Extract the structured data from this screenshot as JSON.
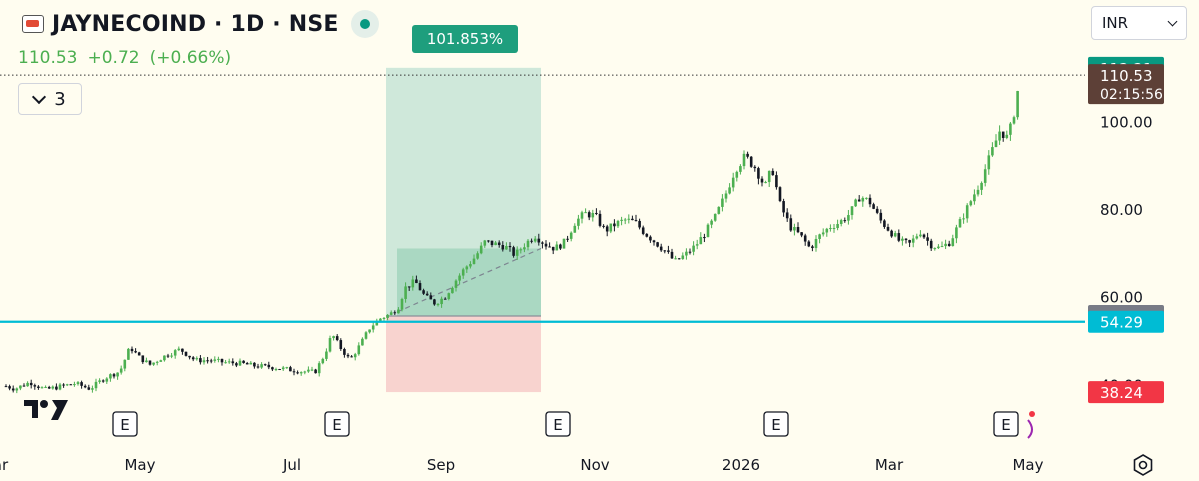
{
  "header": {
    "symbol_title": "JAYNECOIND · 1D · NSE",
    "last_price": "110.53",
    "change": "+0.72",
    "change_pct": "(+0.66%)",
    "indicators_count": "3",
    "currency": "INR"
  },
  "position_tool": {
    "label": "101.853%"
  },
  "event_markers": {
    "label": "E"
  },
  "chart_data": {
    "type": "candlestick",
    "title": "",
    "xlabel": "",
    "ylabel": "",
    "x_ticks": [
      "Mar",
      "May",
      "Jul",
      "Sep",
      "Nov",
      "2026",
      "Mar",
      "May"
    ],
    "y_ticks": [
      40,
      60,
      80,
      100,
      120
    ],
    "y_tick_labels": [
      "40.00",
      "60.00",
      "80.00",
      "100.00",
      "120.00"
    ],
    "ylim": [
      36,
      122
    ],
    "price_labels": [
      {
        "name": "target",
        "value": 112.21,
        "text": "112.21",
        "color": "#089981"
      },
      {
        "name": "last",
        "value": 110.53,
        "text": "110.53",
        "sub": "02:15:56",
        "color": "#5d4037"
      },
      {
        "name": "entry",
        "value": 55.59,
        "text": "55.59",
        "color": "#787b86"
      },
      {
        "name": "support",
        "value": 54.29,
        "text": "54.29",
        "color": "#00bcd4"
      },
      {
        "name": "stop",
        "value": 38.24,
        "text": "38.24",
        "color": "#f23645"
      }
    ],
    "support_line": 54.29,
    "position": {
      "entry": 55.59,
      "target": 112.21,
      "stop": 38.24,
      "current_high": 71.0
    },
    "series": [
      {
        "name": "",
        "points": [
          [
            0,
            40.0
          ],
          [
            15,
            39.0
          ],
          [
            30,
            40.5
          ],
          [
            45,
            38.8
          ],
          [
            60,
            39.5
          ],
          [
            75,
            40.2
          ],
          [
            90,
            39.0
          ],
          [
            105,
            41.5
          ],
          [
            120,
            43.0
          ],
          [
            130,
            48.5
          ],
          [
            140,
            46.0
          ],
          [
            150,
            44.5
          ],
          [
            165,
            46.5
          ],
          [
            180,
            48.0
          ],
          [
            195,
            45.5
          ],
          [
            210,
            45.5
          ],
          [
            225,
            45.0
          ],
          [
            240,
            44.8
          ],
          [
            255,
            44.2
          ],
          [
            270,
            44.0
          ],
          [
            285,
            43.5
          ],
          [
            300,
            43.0
          ],
          [
            315,
            42.8
          ],
          [
            325,
            47.0
          ],
          [
            332,
            51.5
          ],
          [
            340,
            48.5
          ],
          [
            350,
            45.5
          ],
          [
            360,
            49.0
          ],
          [
            370,
            53.0
          ],
          [
            380,
            55.0
          ],
          [
            390,
            56.0
          ],
          [
            398,
            57.5
          ],
          [
            405,
            62.0
          ],
          [
            415,
            63.5
          ],
          [
            425,
            60.0
          ],
          [
            435,
            58.5
          ],
          [
            445,
            60.0
          ],
          [
            455,
            63.5
          ],
          [
            465,
            66.5
          ],
          [
            475,
            69.0
          ],
          [
            485,
            72.5
          ],
          [
            495,
            72.0
          ],
          [
            505,
            71.5
          ],
          [
            515,
            69.5
          ],
          [
            525,
            72.0
          ],
          [
            535,
            74.0
          ],
          [
            545,
            72.0
          ],
          [
            555,
            71.0
          ],
          [
            565,
            72.5
          ],
          [
            575,
            77.0
          ],
          [
            585,
            79.0
          ],
          [
            595,
            78.5
          ],
          [
            605,
            75.0
          ],
          [
            615,
            76.5
          ],
          [
            625,
            77.5
          ],
          [
            635,
            77.0
          ],
          [
            645,
            74.5
          ],
          [
            655,
            72.5
          ],
          [
            665,
            70.5
          ],
          [
            675,
            68.0
          ],
          [
            685,
            69.5
          ],
          [
            695,
            71.5
          ],
          [
            705,
            74.5
          ],
          [
            715,
            78.0
          ],
          [
            725,
            83.0
          ],
          [
            735,
            89.0
          ],
          [
            745,
            92.0
          ],
          [
            755,
            89.5
          ],
          [
            765,
            85.0
          ],
          [
            772,
            89.5
          ],
          [
            780,
            81.0
          ],
          [
            790,
            76.0
          ],
          [
            800,
            74.0
          ],
          [
            810,
            71.0
          ],
          [
            820,
            74.0
          ],
          [
            830,
            76.0
          ],
          [
            840,
            77.0
          ],
          [
            850,
            79.0
          ],
          [
            860,
            83.0
          ],
          [
            870,
            81.5
          ],
          [
            880,
            77.5
          ],
          [
            890,
            75.0
          ],
          [
            900,
            72.5
          ],
          [
            910,
            72.0
          ],
          [
            920,
            75.0
          ],
          [
            930,
            72.0
          ],
          [
            940,
            71.0
          ],
          [
            950,
            72.5
          ],
          [
            960,
            77.0
          ],
          [
            970,
            81.5
          ],
          [
            980,
            86.0
          ],
          [
            990,
            92.0
          ],
          [
            1000,
            98.0
          ],
          [
            1008,
            96.0
          ],
          [
            1015,
            103.0
          ],
          [
            1020,
            110.5
          ]
        ]
      }
    ],
    "event_positions": [
      125,
      337,
      558,
      776,
      1006
    ]
  }
}
